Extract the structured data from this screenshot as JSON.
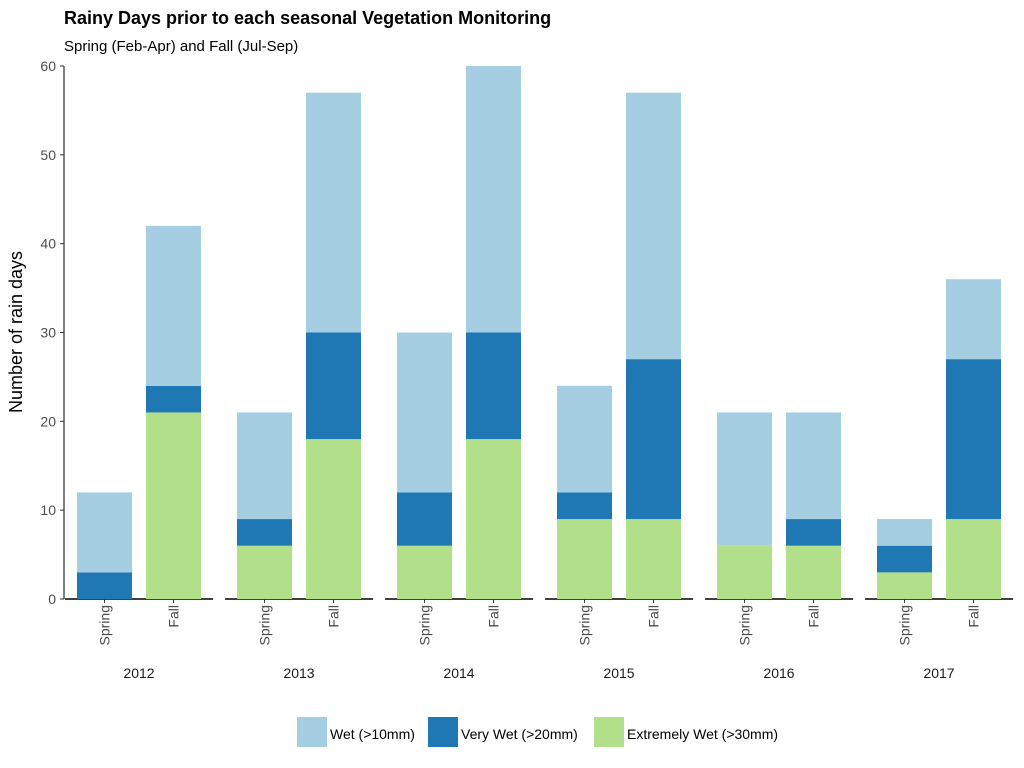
{
  "chart_data": {
    "type": "bar",
    "stacked": true,
    "title": "Rainy Days prior to each seasonal Vegetation Monitoring",
    "subtitle": "Spring (Feb-Apr) and Fall (Jul-Sep)",
    "ylabel": "Number of rain days",
    "xlabel": "",
    "ylim": [
      0,
      60
    ],
    "yticks": [
      0,
      10,
      20,
      30,
      40,
      50,
      60
    ],
    "groups": [
      "2012",
      "2013",
      "2014",
      "2015",
      "2016",
      "2017"
    ],
    "categories": [
      "Spring",
      "Fall"
    ],
    "series": [
      {
        "name": "Extremely Wet (>30mm)",
        "color": "#b2df8a",
        "values": [
          [
            0,
            21
          ],
          [
            6,
            18
          ],
          [
            6,
            18
          ],
          [
            9,
            9
          ],
          [
            6,
            6
          ],
          [
            3,
            9
          ]
        ]
      },
      {
        "name": "Very Wet (>20mm)",
        "color": "#1f78b4",
        "values": [
          [
            3,
            3
          ],
          [
            3,
            12
          ],
          [
            6,
            12
          ],
          [
            3,
            18
          ],
          [
            0,
            3
          ],
          [
            3,
            18
          ]
        ]
      },
      {
        "name": "Wet (>10mm)",
        "color": "#a6cee3",
        "values": [
          [
            9,
            18
          ],
          [
            12,
            27
          ],
          [
            18,
            30
          ],
          [
            12,
            30
          ],
          [
            15,
            12
          ],
          [
            3,
            9
          ]
        ]
      }
    ],
    "totals": [
      [
        12,
        42
      ],
      [
        21,
        57
      ],
      [
        30,
        60
      ],
      [
        24,
        57
      ],
      [
        21,
        21
      ],
      [
        9,
        36
      ]
    ],
    "legend": {
      "position": "bottom",
      "order": [
        "Wet (>10mm)",
        "Very Wet (>20mm)",
        "Extremely Wet (>30mm)"
      ]
    }
  }
}
